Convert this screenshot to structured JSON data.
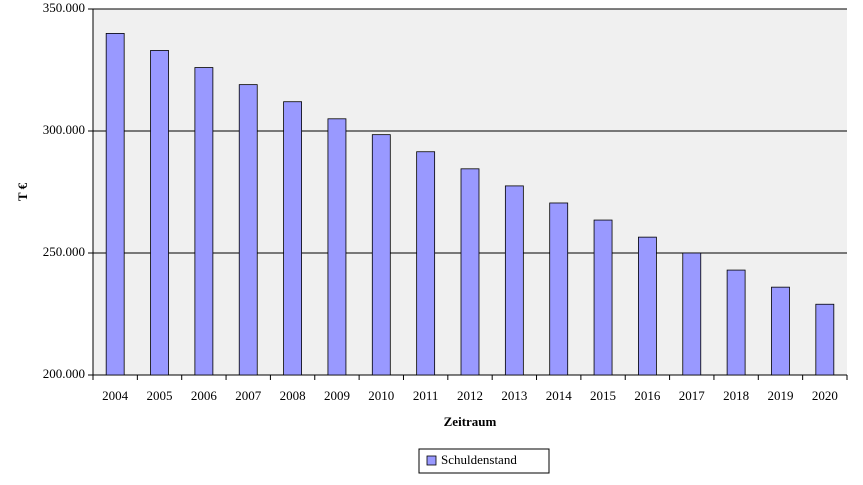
{
  "chart_data": {
    "type": "bar",
    "y_label": "T €",
    "x_label": "Zeitraum",
    "categories": [
      "2004",
      "2005",
      "2006",
      "2007",
      "2008",
      "2009",
      "2010",
      "2011",
      "2012",
      "2013",
      "2014",
      "2015",
      "2016",
      "2017",
      "2018",
      "2019",
      "2020"
    ],
    "series": [
      {
        "name": "Schuldenstand",
        "color": "#9999ff",
        "values": [
          340000,
          333000,
          326000,
          319000,
          312000,
          305000,
          298500,
          291500,
          284500,
          277500,
          270500,
          263500,
          256500,
          250000,
          243000,
          236000,
          229000
        ]
      }
    ],
    "ylim": [
      200000,
      350000
    ],
    "yticks": [
      {
        "value": 200000,
        "label": "200.000"
      },
      {
        "value": 250000,
        "label": "250.000"
      },
      {
        "value": 300000,
        "label": "300.000"
      },
      {
        "value": 350000,
        "label": "350.000"
      }
    ],
    "grid": true
  }
}
